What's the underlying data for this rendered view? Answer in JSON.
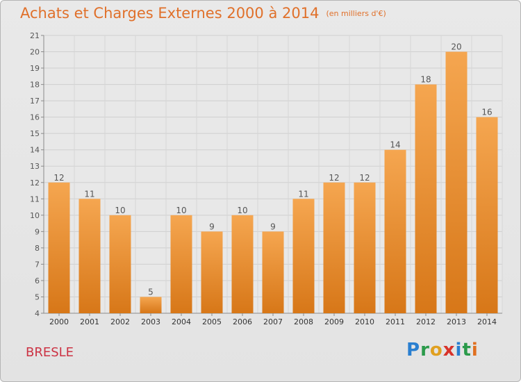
{
  "header": {
    "title": "Achats et Charges Externes 2000 à 2014",
    "unit": "(en milliers d'€)"
  },
  "footer": {
    "town": "BRESLE",
    "brand": [
      "P",
      "r",
      "o",
      "x",
      "i",
      "t",
      "i"
    ]
  },
  "colors": {
    "bar_light": "#f5a650",
    "bar_dark": "#d77718",
    "title": "#e0702a",
    "town": "#cc3344"
  },
  "chart_data": {
    "type": "bar",
    "categories": [
      "2000",
      "2001",
      "2002",
      "2003",
      "2004",
      "2005",
      "2006",
      "2007",
      "2008",
      "2009",
      "2010",
      "2011",
      "2012",
      "2013",
      "2014"
    ],
    "values": [
      12,
      11,
      10,
      5,
      10,
      9,
      10,
      9,
      11,
      12,
      12,
      14,
      18,
      20,
      16
    ],
    "title": "Achats et Charges Externes 2000 à 2014",
    "subtitle": "(en milliers d'€)",
    "xlabel": "",
    "ylabel": "",
    "ylim": [
      4,
      21
    ],
    "yticks": [
      4,
      5,
      6,
      7,
      8,
      9,
      10,
      11,
      12,
      13,
      14,
      15,
      16,
      17,
      18,
      19,
      20,
      21
    ],
    "grid": true,
    "data_labels": true
  }
}
